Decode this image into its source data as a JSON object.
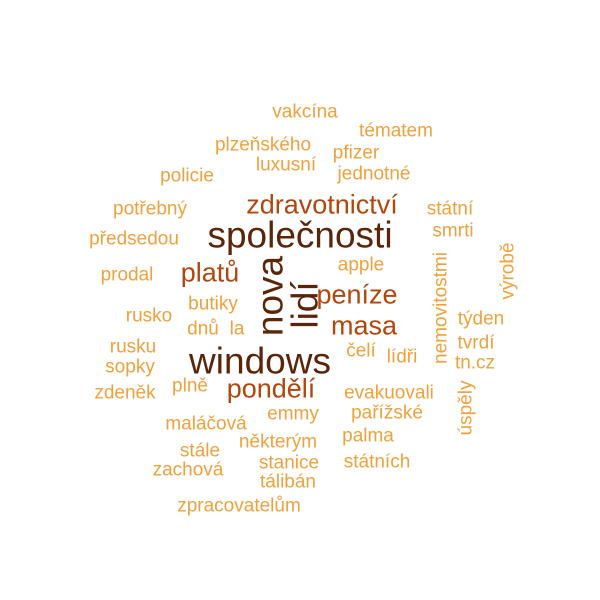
{
  "colors": {
    "darkest": "#5b2509",
    "dark": "#7a3410",
    "brown": "#b4460c",
    "orange": "#e17d1d",
    "light": "#f0a13c"
  },
  "words": {
    "nova": {
      "text": "nova",
      "tier": "darkest"
    },
    "lidi": {
      "text": "lidí",
      "tier": "darkest"
    },
    "spolecnosti": {
      "text": "společnosti",
      "tier": "darkest"
    },
    "windows": {
      "text": "windows",
      "tier": "darkest"
    },
    "zdravotnictvi": {
      "text": "zdravotnictví",
      "tier": "brown"
    },
    "platu": {
      "text": "platů",
      "tier": "brown"
    },
    "penize": {
      "text": "peníze",
      "tier": "brown"
    },
    "masa": {
      "text": "masa",
      "tier": "brown"
    },
    "pondeli": {
      "text": "pondělí",
      "tier": "brown"
    },
    "vakcina": {
      "text": "vakcína",
      "tier": "light"
    },
    "tematem": {
      "text": "tématem",
      "tier": "light"
    },
    "plzenskeho": {
      "text": "plzeňského",
      "tier": "light"
    },
    "pfizer": {
      "text": "pfizer",
      "tier": "light"
    },
    "luxusni": {
      "text": "luxusní",
      "tier": "light"
    },
    "jednotne": {
      "text": "jednotné",
      "tier": "light"
    },
    "policie": {
      "text": "policie",
      "tier": "light"
    },
    "potrebny": {
      "text": "potřebný",
      "tier": "light"
    },
    "statni": {
      "text": "státní",
      "tier": "light"
    },
    "predsedou": {
      "text": "předsedou",
      "tier": "light"
    },
    "smrti": {
      "text": "smrti",
      "tier": "light"
    },
    "vyrobe": {
      "text": "výrobě",
      "tier": "light"
    },
    "apple": {
      "text": "apple",
      "tier": "light"
    },
    "prodal": {
      "text": "prodal",
      "tier": "light"
    },
    "nemovitostmi": {
      "text": "nemovitostmi",
      "tier": "light"
    },
    "butiky": {
      "text": "butiky",
      "tier": "light"
    },
    "rusko": {
      "text": "rusko",
      "tier": "light"
    },
    "tyden": {
      "text": "týden",
      "tier": "light"
    },
    "dnu": {
      "text": "dnů",
      "tier": "light"
    },
    "la": {
      "text": "la",
      "tier": "light"
    },
    "tvrdi": {
      "text": "tvrdí",
      "tier": "light"
    },
    "rusku": {
      "text": "rusku",
      "tier": "light"
    },
    "celi": {
      "text": "čelí",
      "tier": "light"
    },
    "lidri": {
      "text": "lídři",
      "tier": "light"
    },
    "tncz": {
      "text": "tn.cz",
      "tier": "light"
    },
    "sopky": {
      "text": "sopky",
      "tier": "light"
    },
    "zdenek": {
      "text": "zdeněk",
      "tier": "light"
    },
    "plne": {
      "text": "plně",
      "tier": "light"
    },
    "evakuovali": {
      "text": "evakuovali",
      "tier": "light"
    },
    "uspely": {
      "text": "úspěly",
      "tier": "light"
    },
    "emmy": {
      "text": "emmy",
      "tier": "light"
    },
    "parizske": {
      "text": "pařížské",
      "tier": "light"
    },
    "malacova": {
      "text": "maláčová",
      "tier": "light"
    },
    "nekterym": {
      "text": "některým",
      "tier": "light"
    },
    "palma": {
      "text": "palma",
      "tier": "light"
    },
    "stale": {
      "text": "stále",
      "tier": "light"
    },
    "stanice": {
      "text": "stanice",
      "tier": "light"
    },
    "statnich": {
      "text": "státních",
      "tier": "light"
    },
    "zachova": {
      "text": "zachová",
      "tier": "light"
    },
    "taliban": {
      "text": "tálibán",
      "tier": "light"
    },
    "zpracovatelum": {
      "text": "zpracovatelům",
      "tier": "light"
    }
  }
}
